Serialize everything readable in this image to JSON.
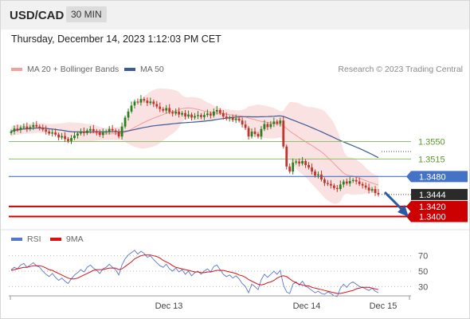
{
  "header": {
    "symbol": "USD/CAD",
    "timeframe": "30 MIN"
  },
  "datetime": "Thursday, December 14, 2023 1:12:03 PM CET",
  "legend": {
    "ma20_label": "MA 20 + Bollinger Bands",
    "ma20_color": "#f08080",
    "ma50_label": "MA 50",
    "ma50_color": "#3a5a98",
    "research": "Research © 2023 Trading Central"
  },
  "rsi_legend": {
    "rsi_label": "RSI",
    "rsi_color": "#5577cc",
    "ma_label": "9MA",
    "ma_color": "#dd1111"
  },
  "colors": {
    "up": "#2e7d1e",
    "down": "#c0352b",
    "green_level": "#8cc06a",
    "blue_level": "#4472c4",
    "red_level": "#cc0000",
    "price_box": "#2a2a2a",
    "arrow": "#2c5aa0",
    "bb_fill": "#fbe2e2"
  },
  "chart_data": [
    {
      "type": "candlestick",
      "title": "USD/CAD 30 MIN",
      "x_labels": [
        "Dec 13",
        "Dec 14",
        "Dec 15"
      ],
      "ylim": [
        1.338,
        1.368
      ],
      "current_price": 1.3444,
      "levels": [
        {
          "value": 1.355,
          "label": "1.3550",
          "style": "green-line"
        },
        {
          "value": 1.3515,
          "label": "1.3515",
          "style": "green-line"
        },
        {
          "value": 1.348,
          "label": "1.3480",
          "style": "blue-pivot"
        },
        {
          "value": 1.342,
          "label": "1.3420",
          "style": "red-target"
        },
        {
          "value": 1.34,
          "label": "1.3400",
          "style": "red-target"
        }
      ],
      "price_label": "1.3444",
      "ma20_bollinger": "shown",
      "ma50": "shown",
      "forecast_arrow": "down",
      "candles_close": [
        1.357,
        1.3576,
        1.3573,
        1.3578,
        1.358,
        1.3575,
        1.3579,
        1.3583,
        1.358,
        1.3578,
        1.3574,
        1.357,
        1.3566,
        1.3568,
        1.3564,
        1.3558,
        1.3561,
        1.3555,
        1.3551,
        1.3557,
        1.3562,
        1.3566,
        1.357,
        1.3567,
        1.3572,
        1.3575,
        1.3571,
        1.3568,
        1.3563,
        1.3568,
        1.357,
        1.3575,
        1.3572,
        1.3569,
        1.356,
        1.358,
        1.3598,
        1.361,
        1.3622,
        1.363,
        1.3628,
        1.3635,
        1.3632,
        1.3627,
        1.363,
        1.3625,
        1.362,
        1.3615,
        1.3612,
        1.3617,
        1.3609,
        1.3606,
        1.361,
        1.3604,
        1.3607,
        1.36,
        1.3604,
        1.3598,
        1.3601,
        1.3603,
        1.3599,
        1.3603,
        1.3606,
        1.3602,
        1.361,
        1.3613,
        1.3607,
        1.36,
        1.3596,
        1.3598,
        1.3593,
        1.3596,
        1.3592,
        1.3584,
        1.3577,
        1.356,
        1.357,
        1.3565,
        1.356,
        1.3575,
        1.3585,
        1.3579,
        1.3585,
        1.359,
        1.3586,
        1.3592,
        1.354,
        1.35,
        1.349,
        1.3508,
        1.351,
        1.3506,
        1.3511,
        1.3503,
        1.3498,
        1.349,
        1.3482,
        1.3484,
        1.3474,
        1.3467,
        1.3465,
        1.3462,
        1.3457,
        1.3455,
        1.3464,
        1.347,
        1.3466,
        1.3471,
        1.3473,
        1.347,
        1.3465,
        1.3462,
        1.3458,
        1.3452,
        1.3455,
        1.3447,
        1.3444
      ],
      "rsi": {
        "levels": [
          70,
          50,
          30
        ],
        "ylim": [
          20,
          80
        ],
        "rsi_values": [
          52,
          55,
          53,
          58,
          60,
          55,
          58,
          61,
          57,
          55,
          50,
          46,
          43,
          47,
          42,
          38,
          41,
          37,
          34,
          40,
          45,
          48,
          52,
          49,
          55,
          58,
          54,
          51,
          47,
          53,
          55,
          59,
          55,
          52,
          45,
          58,
          66,
          71,
          74,
          77,
          72,
          76,
          73,
          68,
          70,
          65,
          61,
          57,
          55,
          59,
          53,
          50,
          54,
          49,
          52,
          46,
          50,
          44,
          48,
          50,
          46,
          50,
          53,
          49,
          56,
          58,
          52,
          46,
          43,
          45,
          41,
          44,
          40,
          34,
          30,
          22,
          33,
          30,
          26,
          39,
          46,
          42,
          46,
          50,
          46,
          51,
          32,
          23,
          21,
          33,
          36,
          32,
          37,
          31,
          28,
          25,
          22,
          24,
          21,
          20,
          23,
          21,
          18,
          17,
          28,
          33,
          29,
          34,
          36,
          33,
          30,
          29,
          27,
          25,
          28,
          24,
          22
        ],
        "ma_values": [
          51,
          52,
          53,
          54,
          55,
          55,
          56,
          57,
          57,
          57,
          56,
          54,
          52,
          51,
          49,
          47,
          45,
          43,
          41,
          40,
          40,
          41,
          43,
          45,
          47,
          49,
          51,
          52,
          52,
          52,
          53,
          54,
          54,
          54,
          52,
          53,
          56,
          59,
          62,
          66,
          68,
          70,
          71,
          71,
          71,
          70,
          69,
          67,
          64,
          62,
          60,
          57,
          55,
          54,
          53,
          52,
          51,
          50,
          49,
          49,
          48,
          48,
          49,
          49,
          50,
          51,
          51,
          51,
          50,
          49,
          48,
          47,
          45,
          44,
          42,
          39,
          37,
          35,
          33,
          32,
          33,
          35,
          36,
          38,
          41,
          43,
          44,
          43,
          40,
          37,
          35,
          33,
          32,
          31,
          31,
          29,
          28,
          27,
          26,
          25,
          24,
          23,
          22,
          21,
          21,
          22,
          23,
          24,
          25,
          27,
          28,
          29,
          29,
          29,
          28,
          27,
          26
        ]
      }
    }
  ],
  "rsi_axis_labels": [
    "70",
    "50",
    "30"
  ]
}
